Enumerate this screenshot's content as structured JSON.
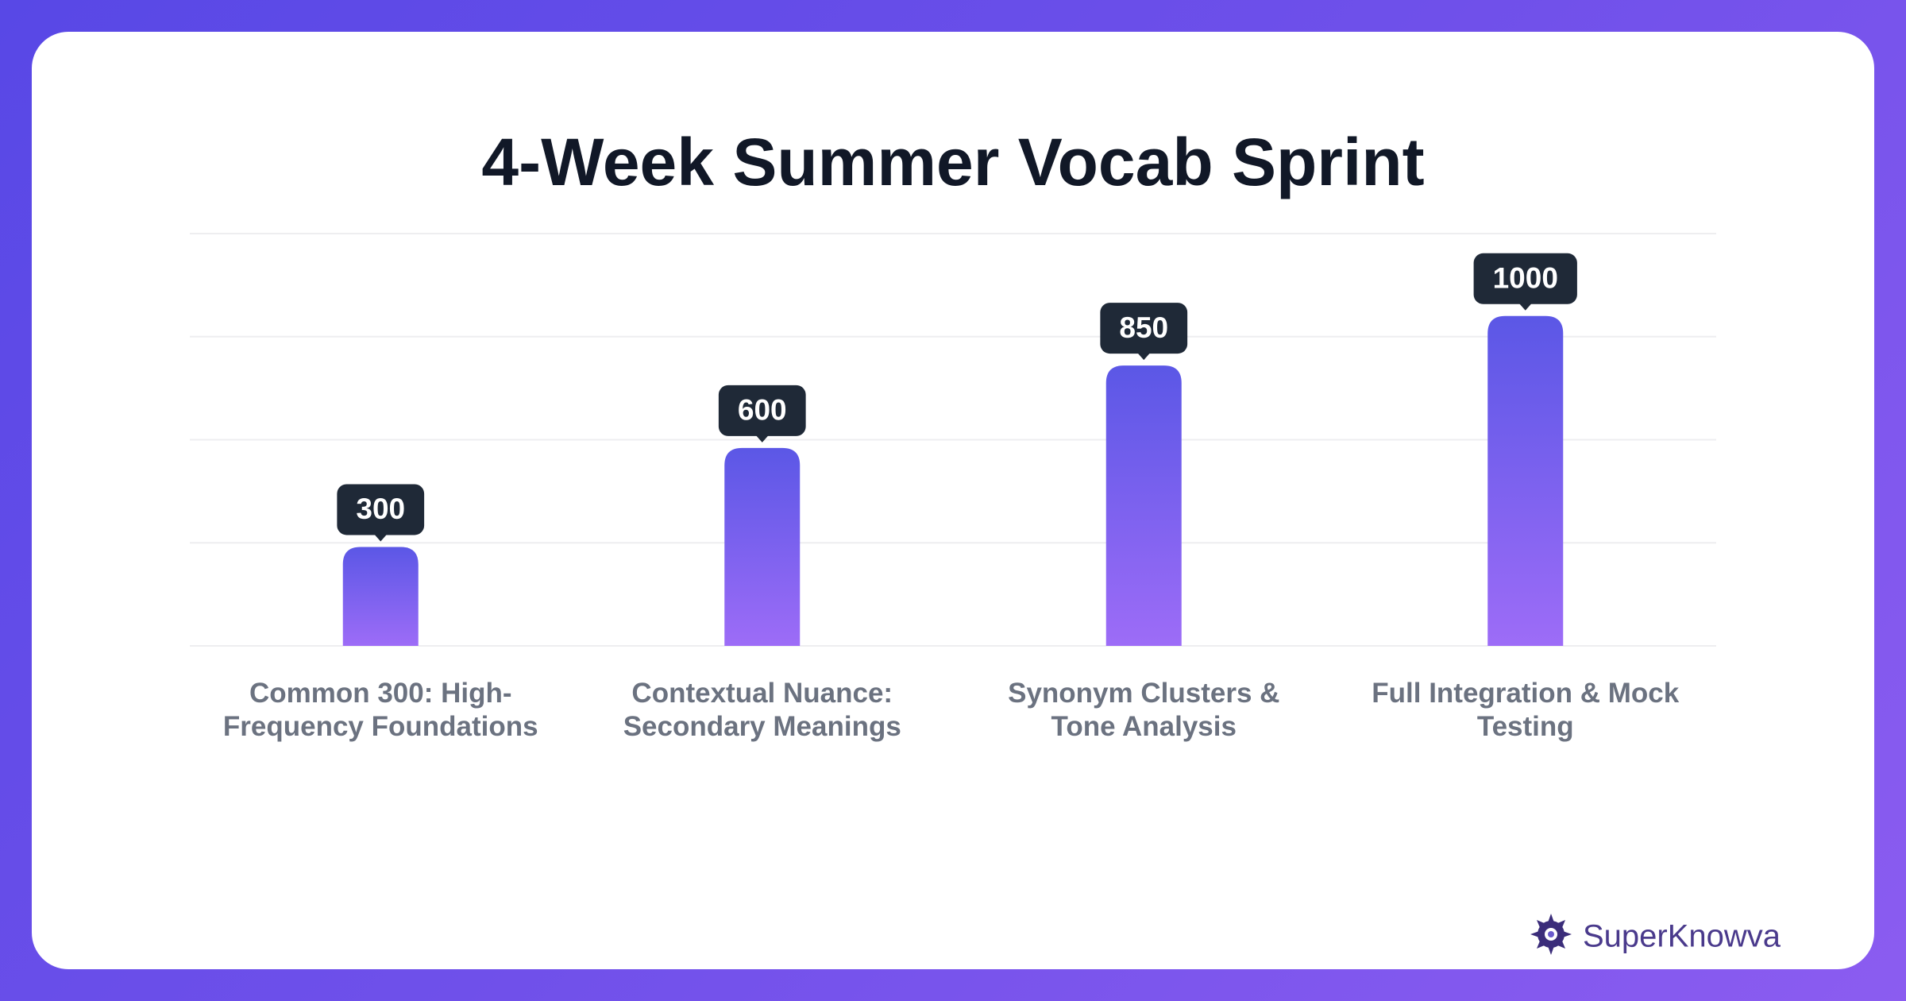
{
  "chart_data": {
    "type": "bar",
    "title": "4-Week Summer Vocab Sprint",
    "categories": [
      "Common 300: High-Frequency Foundations",
      "Contextual Nuance: Secondary Meanings",
      "Synonym Clusters & Tone Analysis",
      "Full Integration & Mock Testing"
    ],
    "values": [
      300,
      600,
      850,
      1000
    ],
    "gradient": [
      "#5b57e6",
      "#9d6cf7"
    ],
    "ylim": [
      0,
      1250
    ],
    "yticks": [
      0,
      312.5,
      625,
      937.5,
      1250
    ],
    "grid": true
  },
  "brand": "SuperKnowva"
}
